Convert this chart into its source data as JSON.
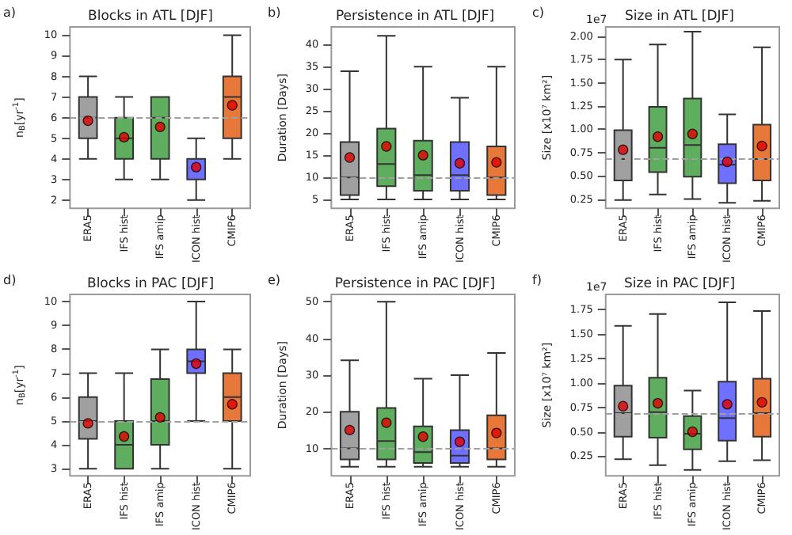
{
  "chart_data": [
    {
      "type": "box",
      "title": "Blocks in ATL [DJF]",
      "ylabel": "n$_{B}$[yr$^{-1}$]",
      "annotations": [
        "a)"
      ],
      "categories": [
        "ERA5",
        "IFS hist",
        "IFS amip",
        "ICON hist",
        "CMIP6"
      ],
      "colors": [
        "#a0a0a0",
        "#5fad5f",
        "#5fad5f",
        "#7070ff",
        "#e8773a"
      ],
      "boxes": [
        {
          "low": 4,
          "q1": 5,
          "median": 6,
          "q3": 7,
          "high": 8
        },
        {
          "low": 3,
          "q1": 4,
          "median": 5,
          "q3": 6,
          "high": 7
        },
        {
          "low": 3,
          "q1": 4,
          "median": 6,
          "q3": 7,
          "high": 7
        },
        {
          "low": 2,
          "q1": 3,
          "median": 4,
          "q3": 4,
          "high": 5
        },
        {
          "low": 4,
          "q1": 5,
          "median": 7,
          "q3": 8,
          "high": 10
        }
      ],
      "series": [
        {
          "type": "scatter",
          "color": "#e00000",
          "marker": "circle",
          "x": [
            "ERA5",
            "IFS hist",
            "IFS amip",
            "ICON hist",
            "CMIP6"
          ],
          "values": [
            5.85,
            5.05,
            5.55,
            3.6,
            6.6
          ]
        }
      ],
      "ylim": [
        1.6,
        10.4
      ],
      "yticks": [
        2,
        3,
        4,
        5,
        6,
        7,
        8,
        9,
        10
      ],
      "ref_lines": [
        {
          "axis": "y",
          "value": 6,
          "color": "#a0a0a0",
          "line_style": "dashed"
        }
      ]
    },
    {
      "type": "box",
      "title": "Persistence in ATL [DJF]",
      "ylabel": "Duration [Days]",
      "annotations": [
        "b)"
      ],
      "categories": [
        "ERA5",
        "IFS hist",
        "IFS amip",
        "ICON hist",
        "CMIP6"
      ],
      "colors": [
        "#a0a0a0",
        "#5fad5f",
        "#5fad5f",
        "#7070ff",
        "#e8773a"
      ],
      "boxes": [
        {
          "low": 5,
          "q1": 6,
          "median": 10,
          "q3": 18,
          "high": 34
        },
        {
          "low": 5,
          "q1": 8,
          "median": 13,
          "q3": 21,
          "high": 42
        },
        {
          "low": 5,
          "q1": 7,
          "median": 10.5,
          "q3": 18.3,
          "high": 35
        },
        {
          "low": 5,
          "q1": 7,
          "median": 10.5,
          "q3": 18,
          "high": 28
        },
        {
          "low": 5,
          "q1": 6,
          "median": 10,
          "q3": 17,
          "high": 35
        }
      ],
      "series": [
        {
          "type": "scatter",
          "color": "#e00000",
          "marker": "circle",
          "x": [
            "ERA5",
            "IFS hist",
            "IFS amip",
            "ICON hist",
            "CMIP6"
          ],
          "values": [
            14.5,
            17,
            15,
            13.2,
            13.4
          ]
        }
      ],
      "ylim": [
        3,
        44
      ],
      "yticks": [
        5,
        10,
        15,
        20,
        25,
        30,
        35,
        40
      ],
      "ref_lines": [
        {
          "axis": "y",
          "value": 10,
          "color": "#a0a0a0",
          "line_style": "dashed"
        }
      ]
    },
    {
      "type": "box",
      "title": "Size in ATL [DJF]",
      "ylabel": "Size [x10⁷ km²]",
      "annotations": [
        "c)",
        "1e7"
      ],
      "categories": [
        "ERA5",
        "IFS hist",
        "IFS amip",
        "ICON hist",
        "CMIP6"
      ],
      "colors": [
        "#a0a0a0",
        "#5fad5f",
        "#5fad5f",
        "#7070ff",
        "#e8773a"
      ],
      "boxes": [
        {
          "low": 0.24,
          "q1": 0.45,
          "median": 0.68,
          "q3": 0.99,
          "high": 1.75
        },
        {
          "low": 0.3,
          "q1": 0.54,
          "median": 0.8,
          "q3": 1.24,
          "high": 1.91
        },
        {
          "low": 0.25,
          "q1": 0.49,
          "median": 0.83,
          "q3": 1.33,
          "high": 2.05
        },
        {
          "low": 0.21,
          "q1": 0.42,
          "median": 0.62,
          "q3": 0.84,
          "high": 1.16
        },
        {
          "low": 0.23,
          "q1": 0.45,
          "median": 0.68,
          "q3": 1.05,
          "high": 1.88
        }
      ],
      "series": [
        {
          "type": "scatter",
          "color": "#e00000",
          "marker": "circle",
          "x": [
            "ERA5",
            "IFS hist",
            "IFS amip",
            "ICON hist",
            "CMIP6"
          ],
          "values": [
            0.78,
            0.92,
            0.95,
            0.65,
            0.82
          ]
        }
      ],
      "ylim": [
        0.15,
        2.1
      ],
      "yticks": [
        0.25,
        {
          "value": 0.5,
          "label": "0.50"
        },
        0.75,
        {
          "value": 1,
          "label": "1.00"
        },
        1.25,
        {
          "value": 1.5,
          "label": "1.50"
        },
        1.75,
        {
          "value": 2,
          "label": "2.00"
        }
      ],
      "ref_lines": [
        {
          "axis": "y",
          "value": 0.68,
          "color": "#a0a0a0",
          "line_style": "dashed"
        }
      ]
    },
    {
      "type": "box",
      "title": "Blocks in PAC [DJF]",
      "ylabel": "n$_{B}$[yr$^{-1}$]",
      "annotations": [
        "d)"
      ],
      "categories": [
        "ERA5",
        "IFS hist",
        "IFS amip",
        "ICON hist",
        "CMIP6"
      ],
      "colors": [
        "#a0a0a0",
        "#5fad5f",
        "#5fad5f",
        "#7070ff",
        "#e8773a"
      ],
      "boxes": [
        {
          "low": 3,
          "q1": 4.25,
          "median": 5,
          "q3": 6,
          "high": 7
        },
        {
          "low": 3,
          "q1": 3,
          "median": 4,
          "q3": 5,
          "high": 7
        },
        {
          "low": 3,
          "q1": 4,
          "median": 5,
          "q3": 6.75,
          "high": 8
        },
        {
          "low": 5,
          "q1": 7,
          "median": 7.5,
          "q3": 8,
          "high": 10
        },
        {
          "low": 3,
          "q1": 5,
          "median": 6,
          "q3": 7,
          "high": 8
        }
      ],
      "series": [
        {
          "type": "scatter",
          "color": "#e00000",
          "marker": "circle",
          "x": [
            "ERA5",
            "IFS hist",
            "IFS amip",
            "ICON hist",
            "CMIP6"
          ],
          "values": [
            4.9,
            4.35,
            5.15,
            7.4,
            5.7
          ]
        }
      ],
      "ylim": [
        2.7,
        10.3
      ],
      "yticks": [
        3,
        4,
        5,
        6,
        7,
        8,
        9,
        10
      ],
      "ref_lines": [
        {
          "axis": "y",
          "value": 5,
          "color": "#a0a0a0",
          "line_style": "dashed"
        }
      ]
    },
    {
      "type": "box",
      "title": "Persistence in PAC [DJF]",
      "ylabel": "Duration [Days]",
      "annotations": [
        "e)"
      ],
      "categories": [
        "ERA5",
        "IFS hist",
        "IFS amip",
        "ICON hist",
        "CMIP6"
      ],
      "colors": [
        "#a0a0a0",
        "#5fad5f",
        "#5fad5f",
        "#7070ff",
        "#e8773a"
      ],
      "boxes": [
        {
          "low": 5,
          "q1": 7,
          "median": 10,
          "q3": 20,
          "high": 34
        },
        {
          "low": 5,
          "q1": 7,
          "median": 12,
          "q3": 21,
          "high": 50
        },
        {
          "low": 5,
          "q1": 6,
          "median": 9,
          "q3": 16,
          "high": 29
        },
        {
          "low": 5,
          "q1": 6,
          "median": 8,
          "q3": 15,
          "high": 30
        },
        {
          "low": 5,
          "q1": 7,
          "median": 10,
          "q3": 19,
          "high": 36
        }
      ],
      "series": [
        {
          "type": "scatter",
          "color": "#e00000",
          "marker": "circle",
          "x": [
            "ERA5",
            "IFS hist",
            "IFS amip",
            "ICON hist",
            "CMIP6"
          ],
          "values": [
            15,
            17,
            13.2,
            11.8,
            14.2
          ]
        }
      ],
      "ylim": [
        2.5,
        52
      ],
      "yticks": [
        10,
        20,
        30,
        40,
        50
      ],
      "ref_lines": [
        {
          "axis": "y",
          "value": 10,
          "color": "#a0a0a0",
          "line_style": "dashed"
        }
      ]
    },
    {
      "type": "box",
      "title": "Size in PAC [DJF]",
      "ylabel": "Size [x10⁷ km²]",
      "annotations": [
        "f)",
        "1e7"
      ],
      "categories": [
        "ERA5",
        "IFS hist",
        "IFS amip",
        "ICON hist",
        "CMIP6"
      ],
      "colors": [
        "#a0a0a0",
        "#5fad5f",
        "#5fad5f",
        "#7070ff",
        "#e8773a"
      ],
      "boxes": [
        {
          "low": 0.22,
          "q1": 0.45,
          "median": 0.69,
          "q3": 0.97,
          "high": 1.58
        },
        {
          "low": 0.16,
          "q1": 0.44,
          "median": 0.7,
          "q3": 1.05,
          "high": 1.7
        },
        {
          "low": 0.11,
          "q1": 0.32,
          "median": 0.48,
          "q3": 0.66,
          "high": 0.92
        },
        {
          "low": 0.2,
          "q1": 0.41,
          "median": 0.64,
          "q3": 1.01,
          "high": 1.82
        },
        {
          "low": 0.21,
          "q1": 0.45,
          "median": 0.69,
          "q3": 1.04,
          "high": 1.73
        }
      ],
      "series": [
        {
          "type": "scatter",
          "color": "#e00000",
          "marker": "circle",
          "x": [
            "ERA5",
            "IFS hist",
            "IFS amip",
            "ICON hist",
            "CMIP6"
          ],
          "values": [
            0.76,
            0.79,
            0.5,
            0.78,
            0.8
          ]
        }
      ],
      "ylim": [
        0.05,
        1.9
      ],
      "yticks": [
        0.25,
        {
          "value": 0.5,
          "label": "0.50"
        },
        0.75,
        {
          "value": 1,
          "label": "1.00"
        },
        1.25,
        {
          "value": 1.5,
          "label": "1.50"
        },
        1.75
      ],
      "ref_lines": [
        {
          "axis": "y",
          "value": 0.69,
          "color": "#a0a0a0",
          "line_style": "dashed"
        }
      ]
    }
  ]
}
